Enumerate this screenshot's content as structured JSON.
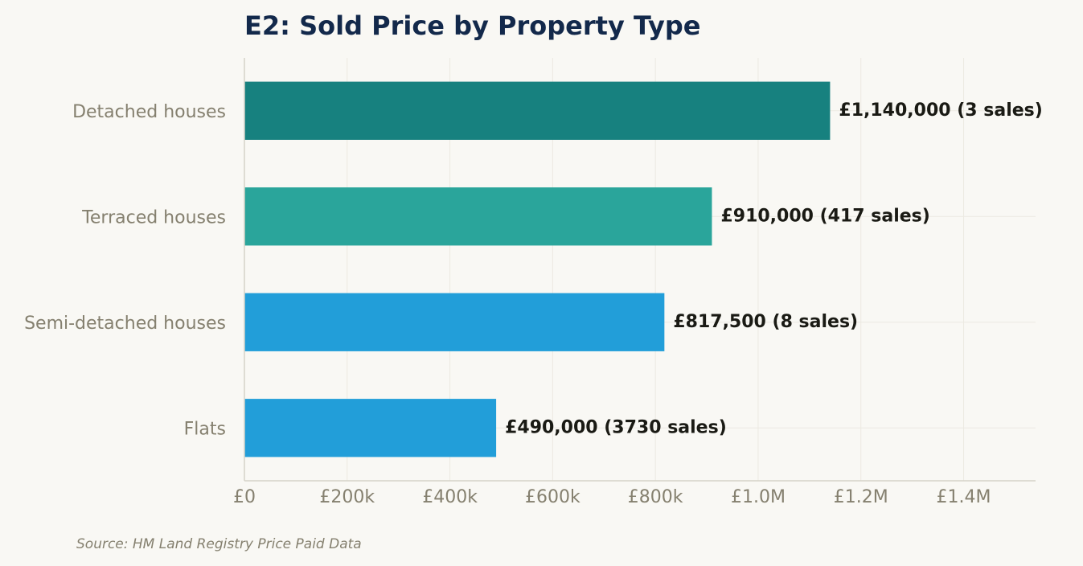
{
  "chart_data": {
    "type": "bar",
    "orientation": "horizontal",
    "title": "E2: Sold Price by Property Type",
    "categories": [
      "Detached houses",
      "Terraced houses",
      "Semi-detached houses",
      "Flats"
    ],
    "values": [
      1140000,
      910000,
      817500,
      490000
    ],
    "sales": [
      3,
      417,
      8,
      3730
    ],
    "data_labels": [
      "£1,140,000  (3 sales)",
      "£910,000  (417 sales)",
      "£817,500  (8 sales)",
      "£490,000  (3730 sales)"
    ],
    "bar_colors": [
      "#17817f",
      "#2aa59b",
      "#229ed9",
      "#229ed9"
    ],
    "xlim": [
      0,
      1540000
    ],
    "x_ticks": [
      0,
      200000,
      400000,
      600000,
      800000,
      1000000,
      1200000,
      1400000
    ],
    "x_tick_labels": [
      "£0",
      "£200k",
      "£400k",
      "£600k",
      "£800k",
      "£1.0M",
      "£1.2M",
      "£1.4M"
    ],
    "grid": true,
    "xlabel": "",
    "ylabel": ""
  },
  "source_note": "Source: HM Land Registry Price Paid Data"
}
